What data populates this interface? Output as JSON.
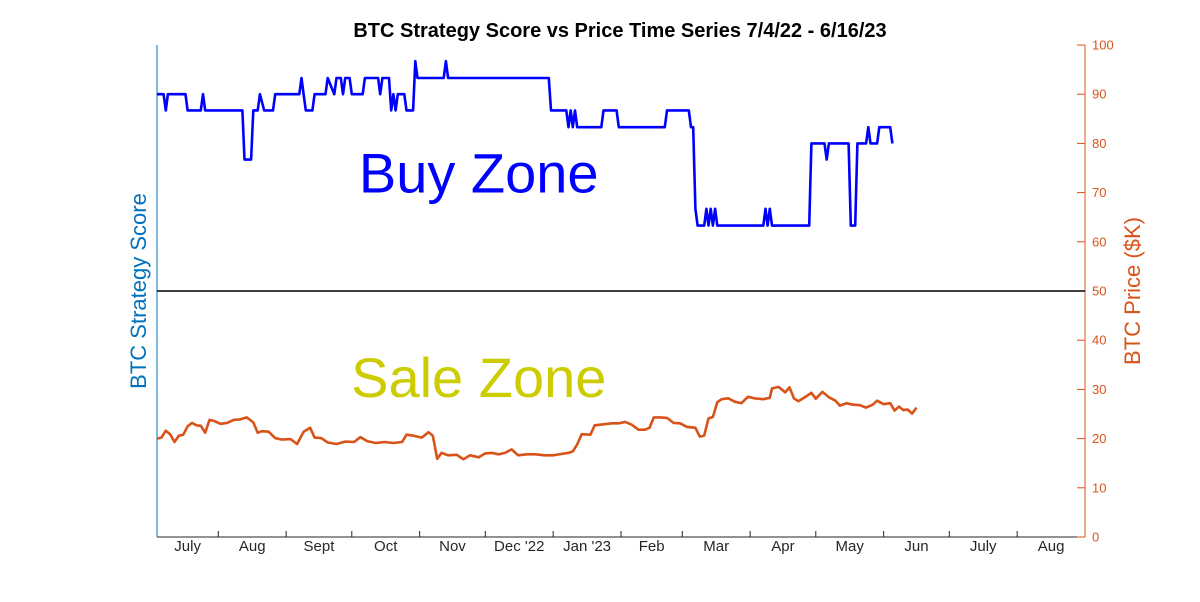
{
  "chart_data": {
    "type": "line",
    "title": "BTC Strategy Score vs Price Time Series 7/4/22 - 6/16/23",
    "ylabel_left": "BTC Strategy Score",
    "ylabel_right": "BTC Price ($K)",
    "ylim": [
      0,
      100
    ],
    "yticks_right": [
      0,
      10,
      20,
      30,
      40,
      50,
      60,
      70,
      80,
      90,
      100
    ],
    "xlim": [
      "2022-07-04",
      "2023-09-01"
    ],
    "x_tick_labels": [
      "July",
      "Aug",
      "Sept",
      "Oct",
      "Nov",
      "Dec '22",
      "Jan '23",
      "Feb",
      "Mar",
      "Apr",
      "May",
      "Jun",
      "July",
      "Aug"
    ],
    "x_tick_dates": [
      "2022-08-01",
      "2022-09-01",
      "2022-10-01",
      "2022-11-01",
      "2022-12-01",
      "2023-01-01",
      "2023-02-01",
      "2023-03-01",
      "2023-04-01",
      "2023-05-01",
      "2023-06-01",
      "2023-07-01",
      "2023-08-01"
    ],
    "threshold": {
      "value": 50,
      "color": "#000000"
    },
    "annotations": [
      {
        "text": "Buy Zone",
        "color": "#0000FF",
        "x": "2022-11-28",
        "y": 70
      },
      {
        "text": "Sale Zone",
        "color": "#CCCC00",
        "x": "2022-11-28",
        "y": 28.5
      }
    ],
    "colors": {
      "left_axis": "#0072BD",
      "right_axis": "#D95319"
    },
    "series": [
      {
        "key": "score",
        "color": "#0000FF",
        "points": [
          [
            "2022-07-04",
            90
          ],
          [
            "2022-07-07",
            90
          ],
          [
            "2022-07-08",
            86.7
          ],
          [
            "2022-07-09",
            90
          ],
          [
            "2022-07-17",
            90
          ],
          [
            "2022-07-18",
            86.7
          ],
          [
            "2022-07-24",
            86.7
          ],
          [
            "2022-07-25",
            90
          ],
          [
            "2022-07-26",
            86.7
          ],
          [
            "2022-08-12",
            86.7
          ],
          [
            "2022-08-13",
            76.7
          ],
          [
            "2022-08-16",
            76.7
          ],
          [
            "2022-08-17",
            86.7
          ],
          [
            "2022-08-19",
            86.7
          ],
          [
            "2022-08-20",
            90
          ],
          [
            "2022-08-22",
            86.7
          ],
          [
            "2022-08-26",
            86.7
          ],
          [
            "2022-08-27",
            90
          ],
          [
            "2022-09-07",
            90
          ],
          [
            "2022-09-08",
            93.3
          ],
          [
            "2022-09-09",
            90
          ],
          [
            "2022-09-10",
            86.7
          ],
          [
            "2022-09-13",
            86.7
          ],
          [
            "2022-09-14",
            90
          ],
          [
            "2022-09-19",
            90
          ],
          [
            "2022-09-20",
            93.3
          ],
          [
            "2022-09-23",
            90
          ],
          [
            "2022-09-24",
            93.3
          ],
          [
            "2022-09-26",
            93.3
          ],
          [
            "2022-09-27",
            90
          ],
          [
            "2022-09-28",
            93.3
          ],
          [
            "2022-09-30",
            93.3
          ],
          [
            "2022-10-01",
            90
          ],
          [
            "2022-10-06",
            90
          ],
          [
            "2022-10-07",
            93.3
          ],
          [
            "2022-10-13",
            93.3
          ],
          [
            "2022-10-14",
            90
          ],
          [
            "2022-10-15",
            93.3
          ],
          [
            "2022-10-18",
            93.3
          ],
          [
            "2022-10-19",
            86.7
          ],
          [
            "2022-10-20",
            90
          ],
          [
            "2022-10-21",
            86.7
          ],
          [
            "2022-10-22",
            90
          ],
          [
            "2022-10-25",
            90
          ],
          [
            "2022-10-26",
            86.7
          ],
          [
            "2022-10-29",
            86.7
          ],
          [
            "2022-10-30",
            96.7
          ],
          [
            "2022-10-31",
            93.3
          ],
          [
            "2022-11-12",
            93.3
          ],
          [
            "2022-11-13",
            96.7
          ],
          [
            "2022-11-14",
            93.3
          ],
          [
            "2022-12-30",
            93.3
          ],
          [
            "2022-12-31",
            86.7
          ],
          [
            "2023-01-07",
            86.7
          ],
          [
            "2023-01-08",
            83.3
          ],
          [
            "2023-01-09",
            86.7
          ],
          [
            "2023-01-10",
            83.3
          ],
          [
            "2023-01-11",
            86.7
          ],
          [
            "2023-01-12",
            83.3
          ],
          [
            "2023-01-23",
            83.3
          ],
          [
            "2023-01-24",
            86.7
          ],
          [
            "2023-01-30",
            86.7
          ],
          [
            "2023-01-31",
            83.3
          ],
          [
            "2023-02-21",
            83.3
          ],
          [
            "2023-02-22",
            86.7
          ],
          [
            "2023-03-04",
            86.7
          ],
          [
            "2023-03-05",
            83.3
          ],
          [
            "2023-03-06",
            83.3
          ],
          [
            "2023-03-07",
            66.7
          ],
          [
            "2023-03-08",
            63.3
          ],
          [
            "2023-03-11",
            63.3
          ],
          [
            "2023-03-12",
            66.7
          ],
          [
            "2023-03-13",
            63.3
          ],
          [
            "2023-03-14",
            66.7
          ],
          [
            "2023-03-15",
            63.3
          ],
          [
            "2023-03-16",
            66.7
          ],
          [
            "2023-03-17",
            63.3
          ],
          [
            "2023-04-07",
            63.3
          ],
          [
            "2023-04-08",
            66.7
          ],
          [
            "2023-04-09",
            63.3
          ],
          [
            "2023-04-10",
            66.7
          ],
          [
            "2023-04-11",
            63.3
          ],
          [
            "2023-04-28",
            63.3
          ],
          [
            "2023-04-29",
            80
          ],
          [
            "2023-05-05",
            80
          ],
          [
            "2023-05-06",
            76.7
          ],
          [
            "2023-05-07",
            80
          ],
          [
            "2023-05-16",
            80
          ],
          [
            "2023-05-17",
            63.3
          ],
          [
            "2023-05-19",
            63.3
          ],
          [
            "2023-05-20",
            80
          ],
          [
            "2023-05-24",
            80
          ],
          [
            "2023-05-25",
            83.3
          ],
          [
            "2023-05-26",
            80
          ],
          [
            "2023-05-29",
            80
          ],
          [
            "2023-05-30",
            83.3
          ],
          [
            "2023-06-04",
            83.3
          ],
          [
            "2023-06-05",
            80
          ]
        ]
      },
      {
        "key": "price",
        "color": "#D95319",
        "points": [
          [
            "2022-07-04",
            20
          ],
          [
            "2022-07-06",
            20.2
          ],
          [
            "2022-07-08",
            21.6
          ],
          [
            "2022-07-10",
            20.9
          ],
          [
            "2022-07-12",
            19.3
          ],
          [
            "2022-07-14",
            20.6
          ],
          [
            "2022-07-16",
            20.8
          ],
          [
            "2022-07-18",
            22.5
          ],
          [
            "2022-07-20",
            23.2
          ],
          [
            "2022-07-22",
            22.7
          ],
          [
            "2022-07-24",
            22.6
          ],
          [
            "2022-07-26",
            21.2
          ],
          [
            "2022-07-28",
            23.8
          ],
          [
            "2022-07-30",
            23.6
          ],
          [
            "2022-08-02",
            23
          ],
          [
            "2022-08-05",
            23.2
          ],
          [
            "2022-08-08",
            23.8
          ],
          [
            "2022-08-11",
            23.9
          ],
          [
            "2022-08-14",
            24.3
          ],
          [
            "2022-08-17",
            23.3
          ],
          [
            "2022-08-19",
            21.2
          ],
          [
            "2022-08-21",
            21.5
          ],
          [
            "2022-08-24",
            21.4
          ],
          [
            "2022-08-27",
            20.1
          ],
          [
            "2022-08-30",
            19.8
          ],
          [
            "2022-09-03",
            19.9
          ],
          [
            "2022-09-06",
            18.9
          ],
          [
            "2022-09-09",
            21.4
          ],
          [
            "2022-09-12",
            22.2
          ],
          [
            "2022-09-14",
            20.2
          ],
          [
            "2022-09-17",
            20.1
          ],
          [
            "2022-09-20",
            19.2
          ],
          [
            "2022-09-24",
            18.9
          ],
          [
            "2022-09-28",
            19.4
          ],
          [
            "2022-10-02",
            19.3
          ],
          [
            "2022-10-05",
            20.3
          ],
          [
            "2022-10-08",
            19.5
          ],
          [
            "2022-10-12",
            19.1
          ],
          [
            "2022-10-16",
            19.3
          ],
          [
            "2022-10-20",
            19.1
          ],
          [
            "2022-10-24",
            19.3
          ],
          [
            "2022-10-26",
            20.8
          ],
          [
            "2022-10-29",
            20.6
          ],
          [
            "2022-11-02",
            20.2
          ],
          [
            "2022-11-05",
            21.3
          ],
          [
            "2022-11-07",
            20.6
          ],
          [
            "2022-11-09",
            15.9
          ],
          [
            "2022-11-11",
            17.1
          ],
          [
            "2022-11-14",
            16.6
          ],
          [
            "2022-11-18",
            16.7
          ],
          [
            "2022-11-21",
            15.8
          ],
          [
            "2022-11-24",
            16.6
          ],
          [
            "2022-11-28",
            16.2
          ],
          [
            "2022-12-01",
            17
          ],
          [
            "2022-12-04",
            17.1
          ],
          [
            "2022-12-07",
            16.8
          ],
          [
            "2022-12-10",
            17.1
          ],
          [
            "2022-12-13",
            17.8
          ],
          [
            "2022-12-16",
            16.6
          ],
          [
            "2022-12-20",
            16.8
          ],
          [
            "2022-12-24",
            16.8
          ],
          [
            "2022-12-28",
            16.6
          ],
          [
            "2023-01-01",
            16.6
          ],
          [
            "2023-01-05",
            16.9
          ],
          [
            "2023-01-08",
            17.1
          ],
          [
            "2023-01-10",
            17.4
          ],
          [
            "2023-01-12",
            18.8
          ],
          [
            "2023-01-14",
            20.9
          ],
          [
            "2023-01-18",
            20.8
          ],
          [
            "2023-01-20",
            22.7
          ],
          [
            "2023-01-24",
            22.9
          ],
          [
            "2023-01-28",
            23.1
          ],
          [
            "2023-01-31",
            23.1
          ],
          [
            "2023-02-03",
            23.4
          ],
          [
            "2023-02-06",
            22.8
          ],
          [
            "2023-02-09",
            21.8
          ],
          [
            "2023-02-12",
            21.8
          ],
          [
            "2023-02-14",
            22.2
          ],
          [
            "2023-02-16",
            24.3
          ],
          [
            "2023-02-19",
            24.3
          ],
          [
            "2023-02-22",
            24.2
          ],
          [
            "2023-02-25",
            23.2
          ],
          [
            "2023-02-28",
            23.1
          ],
          [
            "2023-03-03",
            22.4
          ],
          [
            "2023-03-07",
            22.2
          ],
          [
            "2023-03-09",
            20.4
          ],
          [
            "2023-03-11",
            20.6
          ],
          [
            "2023-03-13",
            24.1
          ],
          [
            "2023-03-15",
            24.4
          ],
          [
            "2023-03-17",
            27.4
          ],
          [
            "2023-03-19",
            28
          ],
          [
            "2023-03-22",
            28.2
          ],
          [
            "2023-03-25",
            27.5
          ],
          [
            "2023-03-28",
            27.2
          ],
          [
            "2023-03-31",
            28.5
          ],
          [
            "2023-04-03",
            28.2
          ],
          [
            "2023-04-07",
            28
          ],
          [
            "2023-04-10",
            28.3
          ],
          [
            "2023-04-11",
            30.2
          ],
          [
            "2023-04-14",
            30.5
          ],
          [
            "2023-04-17",
            29.4
          ],
          [
            "2023-04-19",
            30.4
          ],
          [
            "2023-04-21",
            28.2
          ],
          [
            "2023-04-23",
            27.6
          ],
          [
            "2023-04-26",
            28.4
          ],
          [
            "2023-04-29",
            29.3
          ],
          [
            "2023-05-01",
            28.1
          ],
          [
            "2023-05-04",
            29.5
          ],
          [
            "2023-05-07",
            28.4
          ],
          [
            "2023-05-10",
            27.7
          ],
          [
            "2023-05-12",
            26.7
          ],
          [
            "2023-05-15",
            27.2
          ],
          [
            "2023-05-18",
            26.9
          ],
          [
            "2023-05-21",
            26.8
          ],
          [
            "2023-05-24",
            26.3
          ],
          [
            "2023-05-27",
            26.9
          ],
          [
            "2023-05-29",
            27.7
          ],
          [
            "2023-06-01",
            27
          ],
          [
            "2023-06-04",
            27.2
          ],
          [
            "2023-06-06",
            25.7
          ],
          [
            "2023-06-08",
            26.5
          ],
          [
            "2023-06-10",
            25.8
          ],
          [
            "2023-06-12",
            25.9
          ],
          [
            "2023-06-14",
            25.1
          ],
          [
            "2023-06-16",
            26.3
          ]
        ]
      }
    ]
  }
}
